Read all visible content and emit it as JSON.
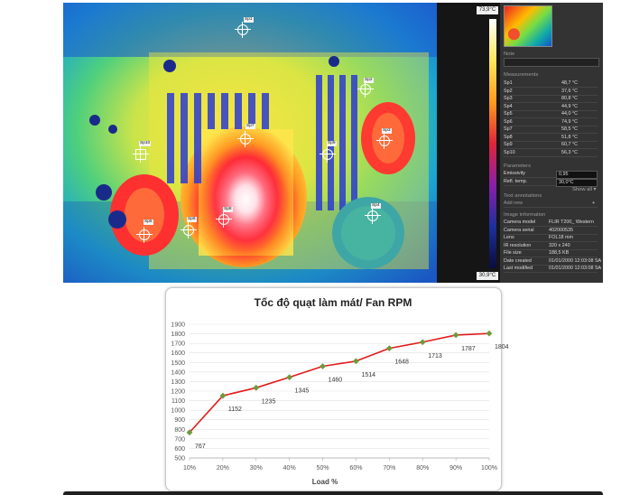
{
  "thermal": {
    "scale_max": "73,9°C",
    "scale_min": "30,9°C",
    "spots": [
      "Sp1",
      "Sp2",
      "Sp3",
      "Sp4",
      "Sp5",
      "Sp6",
      "Sp7",
      "Sp8",
      "Sp9",
      "Sp10"
    ]
  },
  "sidebar": {
    "note_label": "Note",
    "measurements_title": "Measurements",
    "measurements": [
      {
        "name": "Sp1",
        "value": "48,7 °C"
      },
      {
        "name": "Sp2",
        "value": "37,6 °C"
      },
      {
        "name": "Sp3",
        "value": "80,8 °C"
      },
      {
        "name": "Sp4",
        "value": "44,9 °C"
      },
      {
        "name": "Sp5",
        "value": "44,0 °C"
      },
      {
        "name": "Sp6",
        "value": "74,9 °C"
      },
      {
        "name": "Sp7",
        "value": "58,5 °C"
      },
      {
        "name": "Sp8",
        "value": "51,8 °C"
      },
      {
        "name": "Sp9",
        "value": "60,7 °C"
      },
      {
        "name": "Sp10",
        "value": "56,3 °C"
      }
    ],
    "parameters_title": "Parameters",
    "parameters": [
      {
        "name": "Emissivity",
        "value": "0,95"
      },
      {
        "name": "Refl. temp.",
        "value": "30,0°C"
      }
    ],
    "show_all": "Show all ▾",
    "text_annotations_title": "Text annotations",
    "add_new": "Add new",
    "image_info_title": "Image information",
    "image_info": [
      {
        "name": "Camera model",
        "value": "FLIR T200_ Western"
      },
      {
        "name": "Camera serial",
        "value": "402000535"
      },
      {
        "name": "Lens",
        "value": "FOL18 mm"
      },
      {
        "name": "IR resolution",
        "value": "320 x 240"
      },
      {
        "name": "File size",
        "value": "188,5 KB"
      },
      {
        "name": "Date created",
        "value": "01/01/2000 12:03:08 SA"
      },
      {
        "name": "Last modified",
        "value": "01/01/2000 12:03:08 SA"
      }
    ]
  },
  "chart_data": {
    "type": "line",
    "title": "Tốc độ quạt làm mát/ Fan RPM",
    "xlabel": "Load %",
    "ylabel": "",
    "categories": [
      "10%",
      "20%",
      "30%",
      "40%",
      "50%",
      "60%",
      "70%",
      "80%",
      "90%",
      "100%"
    ],
    "values": [
      767,
      1152,
      1235,
      1345,
      1460,
      1514,
      1648,
      1713,
      1787,
      1804
    ],
    "yticks": [
      500,
      600,
      700,
      800,
      900,
      1000,
      1100,
      1200,
      1300,
      1400,
      1500,
      1600,
      1700,
      1800,
      1900
    ],
    "ylim": [
      500,
      1900
    ],
    "grid": true,
    "line_color": "#e21b1b",
    "marker_color": "#6e9a3b"
  }
}
